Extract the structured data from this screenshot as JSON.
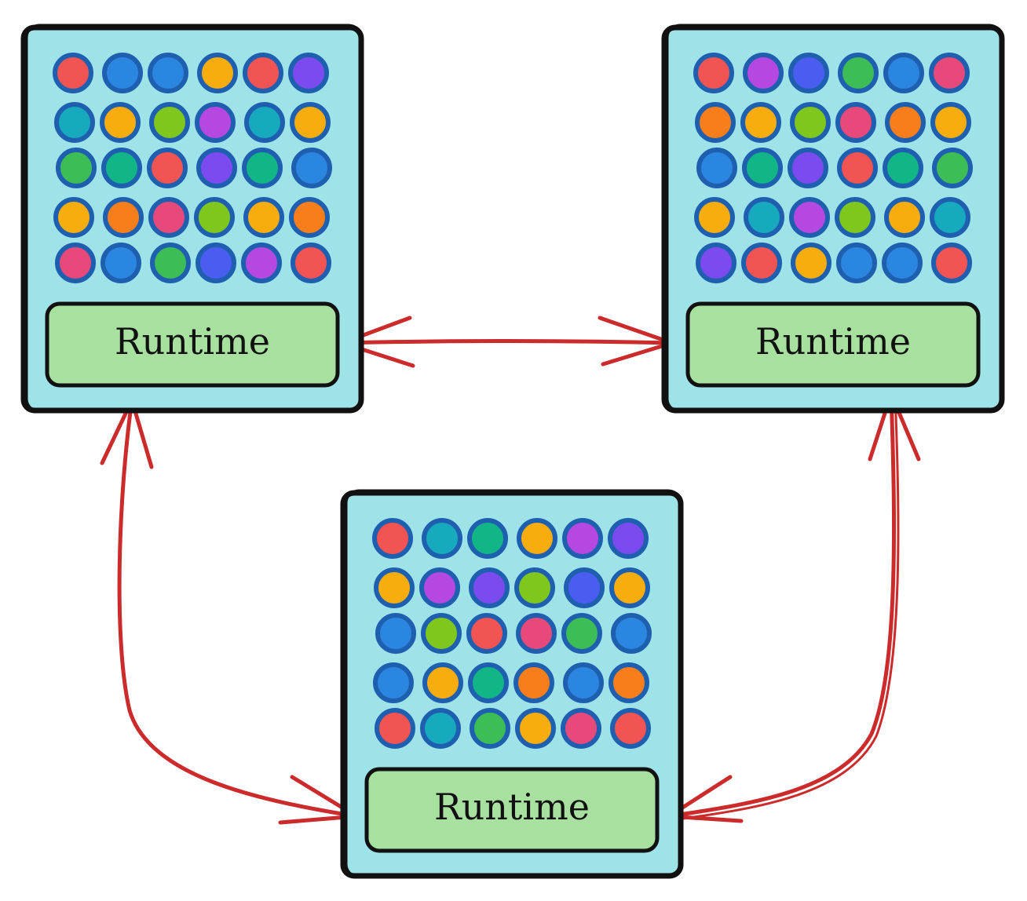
{
  "nodes": [
    {
      "id": "top-left",
      "label": "Runtime",
      "cell_colors": [
        [
          "red",
          "blue",
          "blue",
          "amber",
          "red",
          "violet"
        ],
        [
          "teal",
          "amber",
          "lime",
          "purple",
          "teal",
          "amber"
        ],
        [
          "green",
          "emerald",
          "red",
          "violet",
          "emerald",
          "blue"
        ],
        [
          "amber",
          "orange",
          "pink",
          "lime",
          "amber",
          "orange"
        ],
        [
          "pink",
          "blue",
          "green",
          "indigo",
          "purple",
          "red"
        ]
      ]
    },
    {
      "id": "top-right",
      "label": "Runtime",
      "cell_colors": [
        [
          "red",
          "purple",
          "indigo",
          "green",
          "blue",
          "pink"
        ],
        [
          "orange",
          "amber",
          "lime",
          "pink",
          "orange",
          "amber"
        ],
        [
          "blue",
          "emerald",
          "violet",
          "red",
          "emerald",
          "green"
        ],
        [
          "amber",
          "teal",
          "purple",
          "lime",
          "amber",
          "teal"
        ],
        [
          "violet",
          "red",
          "amber",
          "blue",
          "blue",
          "red"
        ]
      ]
    },
    {
      "id": "bottom",
      "label": "Runtime",
      "cell_colors": [
        [
          "red",
          "teal",
          "emerald",
          "amber",
          "purple",
          "violet"
        ],
        [
          "amber",
          "purple",
          "violet",
          "lime",
          "indigo",
          "amber"
        ],
        [
          "blue",
          "lime",
          "red",
          "pink",
          "green",
          "blue"
        ],
        [
          "blue",
          "amber",
          "emerald",
          "orange",
          "blue",
          "orange"
        ],
        [
          "red",
          "teal",
          "green",
          "amber",
          "pink",
          "red"
        ]
      ]
    }
  ],
  "connections": [
    {
      "from": "top-left",
      "to": "top-right",
      "bidirectional": true
    },
    {
      "from": "top-left",
      "to": "bottom",
      "bidirectional": true
    },
    {
      "from": "top-right",
      "to": "bottom",
      "bidirectional": true
    }
  ],
  "colors": {
    "panel_fill": "#9ee3e8",
    "panel_border": "#111111",
    "cell_outline": "#1f5fb0",
    "runtime_fill": "#a8e0a0",
    "arrow": "#cc2b2b",
    "palette": {
      "red": "#f25353",
      "blue": "#2b86e0",
      "amber": "#f7ad0e",
      "violet": "#7b4bf0",
      "teal": "#17a9bd",
      "lime": "#7fc71d",
      "purple": "#b548e0",
      "green": "#3dbd55",
      "emerald": "#12b585",
      "orange": "#f77e1a",
      "pink": "#e8497b",
      "indigo": "#4a5df0"
    }
  }
}
